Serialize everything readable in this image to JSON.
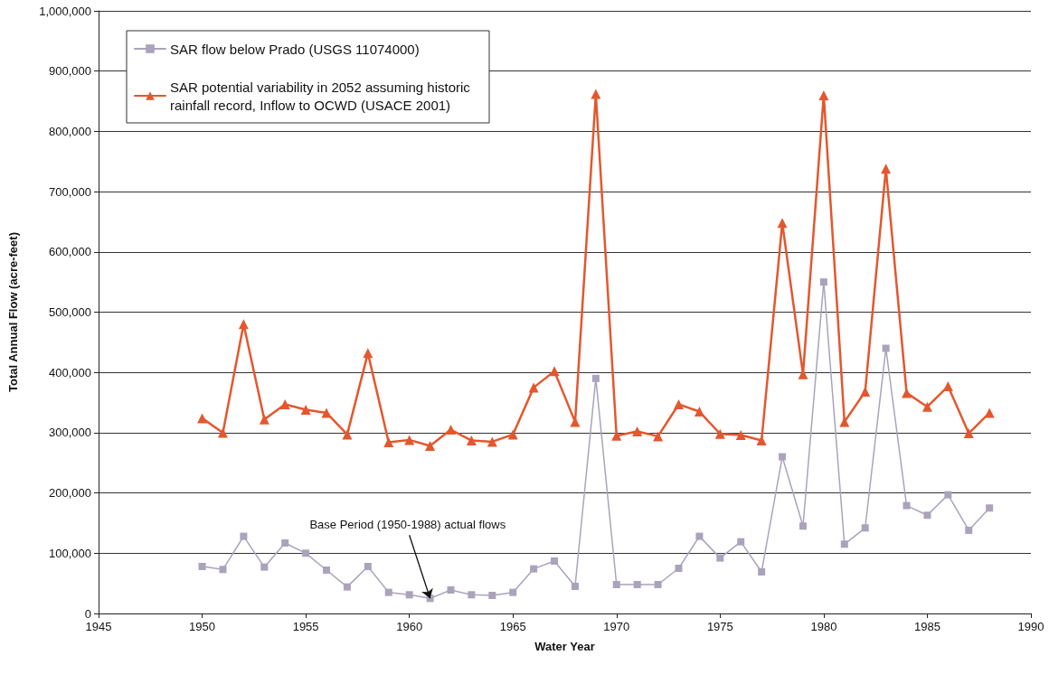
{
  "chart_data": {
    "type": "line",
    "xlabel": "Water Year",
    "ylabel": "Total Annual Flow (acre-feet)",
    "x": [
      1950,
      1951,
      1952,
      1953,
      1954,
      1955,
      1956,
      1957,
      1958,
      1959,
      1960,
      1961,
      1962,
      1963,
      1964,
      1965,
      1966,
      1967,
      1968,
      1969,
      1970,
      1971,
      1972,
      1973,
      1974,
      1975,
      1976,
      1977,
      1978,
      1979,
      1980,
      1981,
      1982,
      1983,
      1984,
      1985,
      1986,
      1987,
      1988
    ],
    "series": [
      {
        "name": "SAR flow below Prado (USGS 11074000)",
        "color": "#aaa3bb",
        "marker": "square",
        "values": [
          78000,
          73000,
          128000,
          77000,
          117000,
          100000,
          72000,
          44000,
          78000,
          35000,
          31000,
          25000,
          39000,
          31000,
          30000,
          35000,
          74000,
          87000,
          45000,
          390000,
          48000,
          48000,
          48000,
          75000,
          128000,
          92000,
          119000,
          69000,
          260000,
          145000,
          550000,
          115000,
          142000,
          440000,
          179000,
          163000,
          197000,
          138000,
          175000
        ]
      },
      {
        "name": "SAR potential variability in 2052 assuming historic rainfall record, Inflow to OCWD (USACE 2001)",
        "color": "#e4572e",
        "marker": "triangle",
        "values": [
          324000,
          300000,
          480000,
          322000,
          347000,
          338000,
          333000,
          297000,
          432000,
          284000,
          288000,
          278000,
          305000,
          287000,
          285000,
          297000,
          375000,
          402000,
          318000,
          862000,
          295000,
          302000,
          294000,
          347000,
          335000,
          298000,
          296000,
          287000,
          648000,
          397000,
          860000,
          318000,
          368000,
          738000,
          366000,
          343000,
          377000,
          299000,
          333000
        ]
      }
    ],
    "xlim": [
      1945,
      1990
    ],
    "xticks": [
      1945,
      1950,
      1955,
      1960,
      1965,
      1970,
      1975,
      1980,
      1985,
      1990
    ],
    "ylim": [
      0,
      1000000
    ],
    "yticks": [
      {
        "value": 0,
        "label": "0"
      },
      {
        "value": 100000,
        "label": "100,000"
      },
      {
        "value": 200000,
        "label": "200,000"
      },
      {
        "value": 300000,
        "label": "300,000"
      },
      {
        "value": 400000,
        "label": "400,000"
      },
      {
        "value": 500000,
        "label": "500,000"
      },
      {
        "value": 600000,
        "label": "600,000"
      },
      {
        "value": 700000,
        "label": "700,000"
      },
      {
        "value": 800000,
        "label": "800,000"
      },
      {
        "value": 900000,
        "label": "900,000"
      },
      {
        "value": 1000000,
        "label": "1,000,000"
      }
    ],
    "grid": "y",
    "legend": "top left",
    "annotations": [
      {
        "text": "Base Period (1950-1988) actual flows",
        "x": 1961,
        "y": 25000
      }
    ]
  }
}
